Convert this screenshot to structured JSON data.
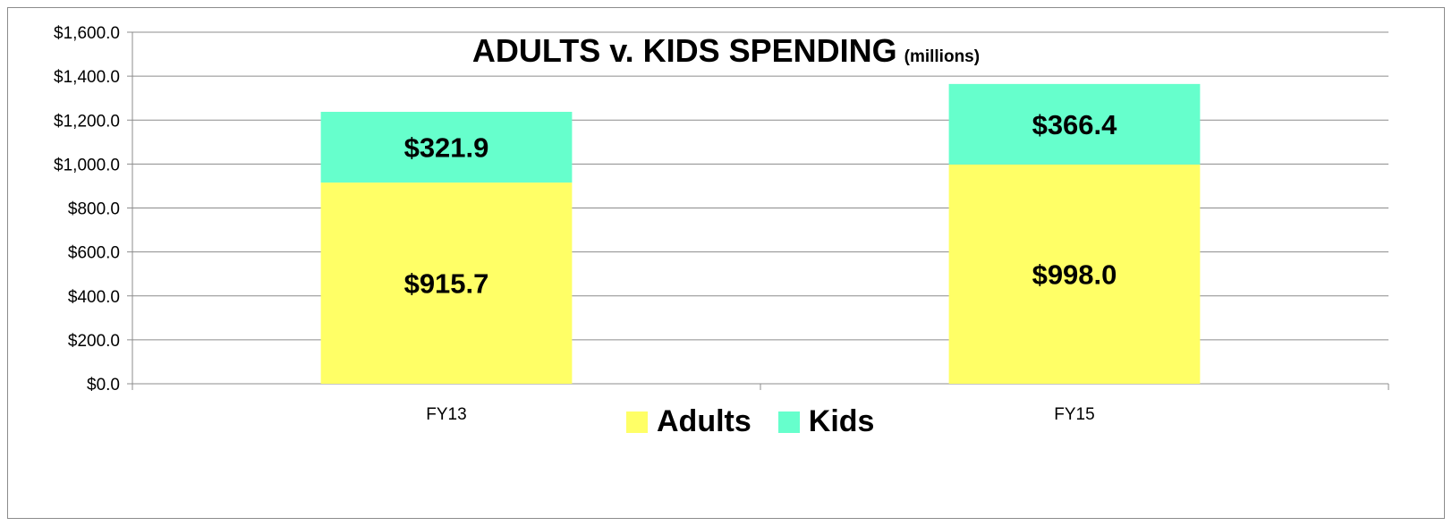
{
  "chart_data": {
    "type": "bar",
    "stacked": true,
    "title": "ADULTS v. KIDS SPENDING",
    "subtitle": "(millions)",
    "xlabel": "",
    "ylabel": "",
    "categories": [
      "FY13",
      "FY15"
    ],
    "series": [
      {
        "name": "Adults",
        "values": [
          915.7,
          998.0
        ],
        "labels": [
          "$915.7",
          "$998.0"
        ],
        "color": "#ffff66"
      },
      {
        "name": "Kids",
        "values": [
          321.9,
          366.4
        ],
        "labels": [
          "$321.9",
          "$366.4"
        ],
        "color": "#66ffcc"
      }
    ],
    "ylim": [
      0,
      1600
    ],
    "y_ticks": [
      0,
      200,
      400,
      600,
      800,
      1000,
      1200,
      1400,
      1600
    ],
    "y_tick_labels": [
      "$0.0",
      "$200.0",
      "$400.0",
      "$600.0",
      "$800.0",
      "$1,000.0",
      "$1,200.0",
      "$1,400.0",
      "$1,600.0"
    ],
    "grid": true,
    "legend": "bottom"
  }
}
